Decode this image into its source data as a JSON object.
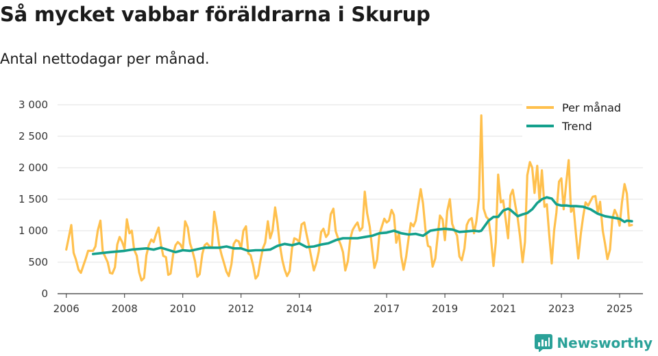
{
  "title": "Så mycket vabbar föräldrarna i Skurup",
  "subtitle": "Antal nettodagar per månad.",
  "brand": {
    "name": "Newsworthy"
  },
  "colors": {
    "per_month": "#ffc04d",
    "trend": "#13a08c",
    "grid": "#e0e0e0",
    "axis": "#333333"
  },
  "chart_data": {
    "type": "line",
    "title": "Så mycket vabbar föräldrarna i Skurup",
    "subtitle": "Antal nettodagar per månad.",
    "xlabel": "",
    "ylabel": "",
    "xlim": [
      2005.7,
      2025.8
    ],
    "ylim": [
      0,
      3000
    ],
    "yticks": [
      0,
      500,
      1000,
      1500,
      2000,
      2500,
      3000
    ],
    "ytick_labels": [
      "0",
      "500",
      "1 000",
      "1 500",
      "2 000",
      "2 500",
      "3 000"
    ],
    "xticks": [
      2006,
      2008,
      2010,
      2012,
      2014,
      2017,
      2019,
      2021,
      2023,
      2025
    ],
    "xtick_labels": [
      "2006",
      "2008",
      "2010",
      "2012",
      "2014",
      "2017",
      "2019",
      "2021",
      "2023",
      "2025"
    ],
    "legend": {
      "position": "top-right",
      "entries": [
        "Per månad",
        "Trend"
      ]
    },
    "series": [
      {
        "name": "Per månad",
        "x": [
          2006.0,
          2006.08,
          2006.17,
          2006.25,
          2006.33,
          2006.42,
          2006.5,
          2006.58,
          2006.67,
          2006.75,
          2006.83,
          2006.92,
          2007.0,
          2007.08,
          2007.17,
          2007.25,
          2007.33,
          2007.42,
          2007.5,
          2007.58,
          2007.67,
          2007.75,
          2007.83,
          2007.92,
          2008.0,
          2008.08,
          2008.17,
          2008.25,
          2008.33,
          2008.42,
          2008.5,
          2008.58,
          2008.67,
          2008.75,
          2008.83,
          2008.92,
          2009.0,
          2009.08,
          2009.17,
          2009.25,
          2009.33,
          2009.42,
          2009.5,
          2009.58,
          2009.67,
          2009.75,
          2009.83,
          2009.92,
          2010.0,
          2010.08,
          2010.17,
          2010.25,
          2010.33,
          2010.42,
          2010.5,
          2010.58,
          2010.67,
          2010.75,
          2010.83,
          2010.92,
          2011.0,
          2011.08,
          2011.17,
          2011.25,
          2011.33,
          2011.42,
          2011.5,
          2011.58,
          2011.67,
          2011.75,
          2011.83,
          2011.92,
          2012.0,
          2012.08,
          2012.17,
          2012.25,
          2012.33,
          2012.42,
          2012.5,
          2012.58,
          2012.67,
          2012.75,
          2012.83,
          2012.92,
          2013.0,
          2013.08,
          2013.17,
          2013.25,
          2013.33,
          2013.42,
          2013.5,
          2013.58,
          2013.67,
          2013.75,
          2013.83,
          2013.92,
          2014.0,
          2014.08,
          2014.17,
          2014.25,
          2014.33,
          2014.42,
          2014.5,
          2014.58,
          2014.67,
          2014.75,
          2014.83,
          2014.92,
          2015.0,
          2015.08,
          2015.17,
          2015.25,
          2015.33,
          2015.42,
          2015.5,
          2015.58,
          2015.67,
          2015.75,
          2015.83,
          2015.92,
          2016.0,
          2016.08,
          2016.17,
          2016.25,
          2016.33,
          2016.42,
          2016.5,
          2016.58,
          2016.67,
          2016.75,
          2016.83,
          2016.92,
          2017.0,
          2017.08,
          2017.17,
          2017.25,
          2017.33,
          2017.42,
          2017.5,
          2017.58,
          2017.67,
          2017.75,
          2017.83,
          2017.92,
          2018.0,
          2018.08,
          2018.17,
          2018.25,
          2018.33,
          2018.42,
          2018.5,
          2018.58,
          2018.67,
          2018.75,
          2018.83,
          2018.92,
          2019.0,
          2019.08,
          2019.17,
          2019.25,
          2019.33,
          2019.42,
          2019.5,
          2019.58,
          2019.67,
          2019.75,
          2019.83,
          2019.92,
          2020.0,
          2020.08,
          2020.17,
          2020.25,
          2020.33,
          2020.42,
          2020.5,
          2020.58,
          2020.67,
          2020.75,
          2020.83,
          2020.92,
          2021.0,
          2021.08,
          2021.17,
          2021.25,
          2021.33,
          2021.42,
          2021.5,
          2021.58,
          2021.67,
          2021.75,
          2021.83,
          2021.92,
          2022.0,
          2022.08,
          2022.17,
          2022.25,
          2022.33,
          2022.42,
          2022.5,
          2022.58,
          2022.67,
          2022.75,
          2022.83,
          2022.92,
          2023.0,
          2023.08,
          2023.17,
          2023.25,
          2023.33,
          2023.42,
          2023.5,
          2023.58,
          2023.67,
          2023.75,
          2023.83,
          2023.92,
          2024.0,
          2024.08,
          2024.17,
          2024.25,
          2024.33,
          2024.42,
          2024.5,
          2024.58,
          2024.67,
          2024.75,
          2024.83,
          2024.92,
          2025.0,
          2025.08,
          2025.17,
          2025.25,
          2025.33,
          2025.42
        ],
        "values": [
          700,
          880,
          1090,
          650,
          540,
          380,
          330,
          440,
          560,
          680,
          680,
          680,
          750,
          1000,
          1160,
          670,
          590,
          500,
          330,
          320,
          420,
          780,
          900,
          820,
          710,
          1180,
          960,
          1000,
          700,
          600,
          340,
          210,
          250,
          610,
          770,
          860,
          820,
          940,
          1050,
          780,
          600,
          580,
          300,
          320,
          630,
          770,
          820,
          780,
          710,
          1150,
          1050,
          800,
          680,
          520,
          270,
          310,
          630,
          770,
          800,
          750,
          740,
          1300,
          1050,
          770,
          620,
          480,
          350,
          280,
          470,
          790,
          850,
          830,
          720,
          1000,
          1070,
          640,
          610,
          440,
          240,
          290,
          530,
          720,
          810,
          1150,
          880,
          1000,
          1370,
          1120,
          780,
          530,
          380,
          280,
          360,
          720,
          880,
          860,
          820,
          1100,
          1130,
          940,
          770,
          560,
          370,
          480,
          670,
          980,
          1030,
          900,
          950,
          1260,
          1350,
          990,
          880,
          780,
          660,
          370,
          520,
          870,
          1010,
          1080,
          1130,
          1000,
          1050,
          1620,
          1280,
          1060,
          720,
          410,
          540,
          940,
          1060,
          1190,
          1130,
          1160,
          1330,
          1250,
          810,
          960,
          590,
          380,
          590,
          870,
          1120,
          1070,
          1160,
          1400,
          1660,
          1430,
          1030,
          760,
          740,
          430,
          560,
          910,
          1240,
          1180,
          850,
          1310,
          1500,
          1110,
          1010,
          920,
          590,
          530,
          720,
          1090,
          1170,
          1200,
          960,
          1150,
          1520,
          2830,
          1350,
          1220,
          1180,
          900,
          440,
          820,
          1890,
          1450,
          1480,
          1200,
          880,
          1560,
          1650,
          1400,
          1200,
          910,
          500,
          820,
          1880,
          2090,
          2000,
          1600,
          2030,
          1460,
          1960,
          1380,
          1420,
          950,
          480,
          1000,
          1290,
          1780,
          1830,
          1340,
          1780,
          2120,
          1300,
          1360,
          950,
          560,
          960,
          1230,
          1450,
          1400,
          1470,
          1540,
          1550,
          1290,
          1460,
          1000,
          790,
          550,
          700,
          1190,
          1330,
          1240,
          1080,
          1450,
          1740,
          1590,
          1080,
          1090
        ]
      },
      {
        "name": "Trend",
        "x": [
          2006.92,
          2007.5,
          2008.0,
          2008.25,
          2008.75,
          2009.0,
          2009.25,
          2009.75,
          2010.0,
          2010.25,
          2010.75,
          2011.0,
          2011.25,
          2011.5,
          2011.75,
          2012.0,
          2012.25,
          2012.5,
          2012.75,
          2013.0,
          2013.25,
          2013.5,
          2013.75,
          2014.0,
          2014.25,
          2014.5,
          2014.75,
          2015.0,
          2015.25,
          2015.5,
          2015.75,
          2016.0,
          2016.25,
          2016.5,
          2016.75,
          2017.0,
          2017.25,
          2017.5,
          2017.75,
          2018.0,
          2018.25,
          2018.5,
          2018.75,
          2019.0,
          2019.25,
          2019.5,
          2019.75,
          2020.0,
          2020.17,
          2020.25,
          2020.5,
          2020.67,
          2020.83,
          2021.0,
          2021.17,
          2021.25,
          2021.5,
          2021.67,
          2021.83,
          2022.0,
          2022.17,
          2022.33,
          2022.5,
          2022.67,
          2022.83,
          2023.0,
          2023.17,
          2023.33,
          2023.5,
          2023.75,
          2024.0,
          2024.25,
          2024.5,
          2024.75,
          2025.0,
          2025.17,
          2025.25,
          2025.42
        ],
        "values": [
          630,
          660,
          680,
          700,
          720,
          700,
          730,
          660,
          690,
          680,
          730,
          730,
          730,
          750,
          720,
          720,
          680,
          690,
          690,
          700,
          760,
          790,
          770,
          800,
          740,
          750,
          780,
          800,
          850,
          880,
          880,
          880,
          900,
          920,
          960,
          970,
          1000,
          960,
          940,
          950,
          920,
          1000,
          1020,
          1030,
          1020,
          980,
          990,
          1000,
          990,
          1000,
          1160,
          1220,
          1220,
          1320,
          1350,
          1330,
          1230,
          1260,
          1280,
          1340,
          1440,
          1500,
          1530,
          1510,
          1420,
          1400,
          1400,
          1390,
          1390,
          1380,
          1340,
          1270,
          1230,
          1210,
          1190,
          1140,
          1160,
          1150
        ]
      }
    ]
  }
}
